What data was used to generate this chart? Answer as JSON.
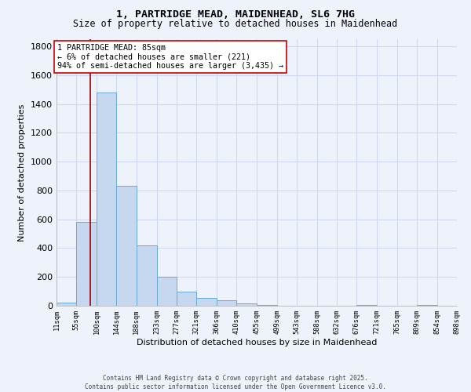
{
  "title1": "1, PARTRIDGE MEAD, MAIDENHEAD, SL6 7HG",
  "title2": "Size of property relative to detached houses in Maidenhead",
  "xlabel": "Distribution of detached houses by size in Maidenhead",
  "ylabel": "Number of detached properties",
  "bar_lefts": [
    11,
    55,
    100,
    144,
    188,
    233,
    277,
    321,
    366,
    410,
    455,
    499,
    543,
    588,
    632,
    676,
    721,
    765,
    809,
    854
  ],
  "bar_rights": [
    55,
    100,
    144,
    188,
    233,
    277,
    321,
    366,
    410,
    455,
    499,
    543,
    588,
    632,
    676,
    721,
    765,
    809,
    854,
    898
  ],
  "bar_heights": [
    20,
    580,
    1480,
    830,
    420,
    200,
    100,
    55,
    40,
    15,
    5,
    0,
    0,
    0,
    0,
    5,
    0,
    0,
    5,
    0
  ],
  "bar_color": "#c5d8f0",
  "bar_edge_color": "#6aaad4",
  "property_size": 85,
  "red_line_color": "#990000",
  "annotation_text": "1 PARTRIDGE MEAD: 85sqm\n← 6% of detached houses are smaller (221)\n94% of semi-detached houses are larger (3,435) →",
  "annotation_box_color": "white",
  "annotation_box_edge": "#cc0000",
  "ylim": [
    0,
    1850
  ],
  "yticks": [
    0,
    200,
    400,
    600,
    800,
    1000,
    1200,
    1400,
    1600,
    1800
  ],
  "tick_labels": [
    "11sqm",
    "55sqm",
    "100sqm",
    "144sqm",
    "188sqm",
    "233sqm",
    "277sqm",
    "321sqm",
    "366sqm",
    "410sqm",
    "455sqm",
    "499sqm",
    "543sqm",
    "588sqm",
    "632sqm",
    "676sqm",
    "721sqm",
    "765sqm",
    "809sqm",
    "854sqm",
    "898sqm"
  ],
  "footer1": "Contains HM Land Registry data © Crown copyright and database right 2025.",
  "footer2": "Contains public sector information licensed under the Open Government Licence v3.0.",
  "bg_color": "#eef2fb",
  "grid_color": "#d0d8ee"
}
